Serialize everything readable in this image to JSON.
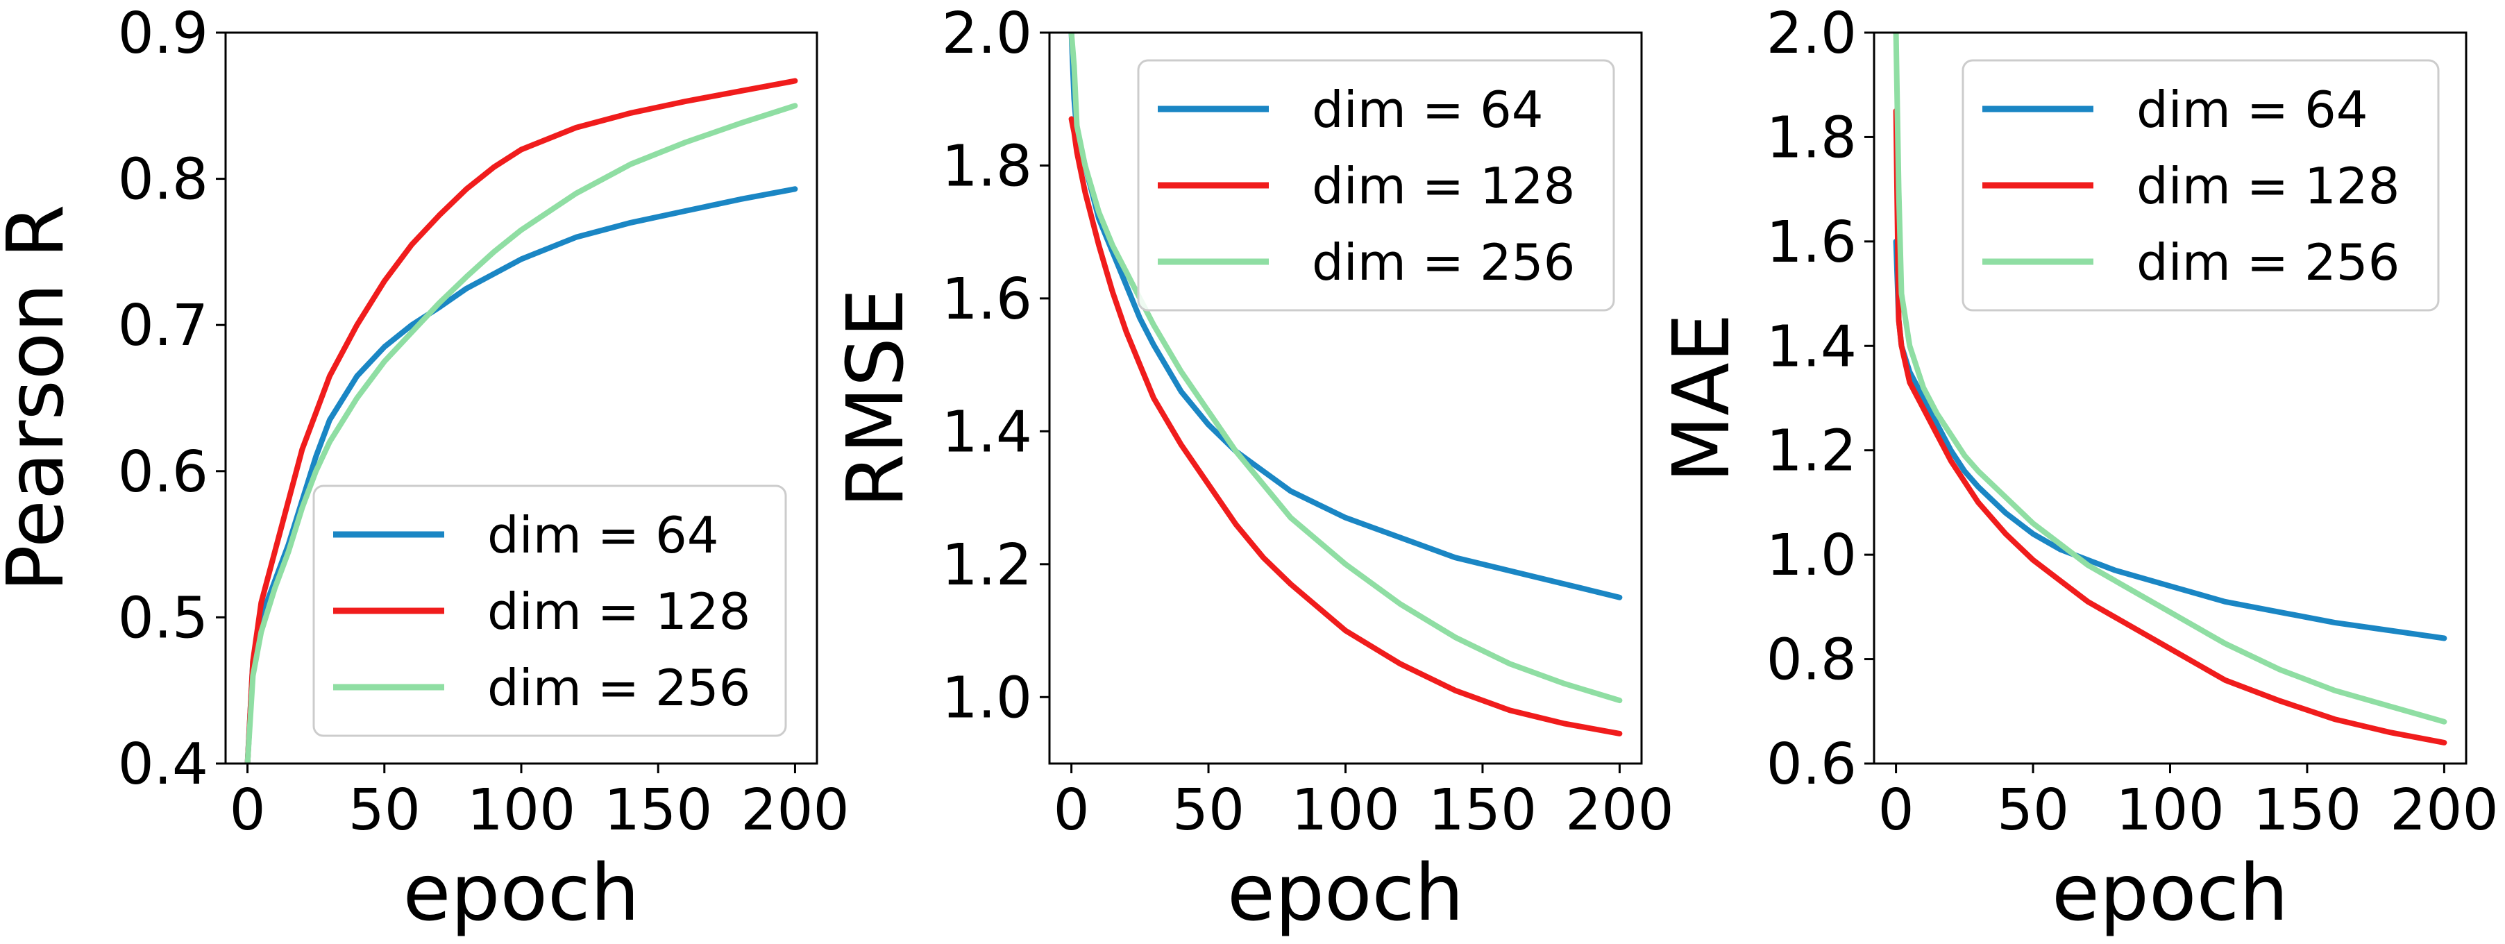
{
  "colors": {
    "dim64": "#1a86c4",
    "dim128": "#f01c1c",
    "dim256": "#8fdea3"
  },
  "chart_data": [
    {
      "type": "line",
      "xlabel": "epoch",
      "ylabel": "Pearson R",
      "xlim": [
        -8,
        208
      ],
      "ylim": [
        0.4,
        0.9
      ],
      "xticks": [
        0,
        50,
        100,
        150,
        200
      ],
      "xtick_labels": [
        "0",
        "50",
        "100",
        "150",
        "200"
      ],
      "yticks": [
        0.4,
        0.5,
        0.6,
        0.7,
        0.8,
        0.9
      ],
      "ytick_labels": [
        "0.4",
        "0.5",
        "0.6",
        "0.7",
        "0.8",
        "0.9"
      ],
      "legend": {
        "placement": "lower-right",
        "entries": [
          "dim = 64",
          "dim = 128",
          "dim = 256"
        ]
      },
      "series": [
        {
          "name": "dim = 64",
          "color": "#1a86c4",
          "x": [
            0,
            2,
            5,
            10,
            15,
            20,
            25,
            30,
            40,
            50,
            60,
            70,
            80,
            90,
            100,
            120,
            140,
            160,
            180,
            200
          ],
          "y": [
            0.4,
            0.47,
            0.5,
            0.525,
            0.55,
            0.58,
            0.61,
            0.635,
            0.665,
            0.685,
            0.7,
            0.712,
            0.725,
            0.735,
            0.745,
            0.76,
            0.77,
            0.778,
            0.786,
            0.793
          ]
        },
        {
          "name": "dim = 128",
          "color": "#f01c1c",
          "x": [
            0,
            2,
            5,
            10,
            15,
            20,
            25,
            30,
            40,
            50,
            60,
            70,
            80,
            90,
            100,
            120,
            140,
            160,
            180,
            200
          ],
          "y": [
            0.4,
            0.47,
            0.51,
            0.545,
            0.58,
            0.615,
            0.64,
            0.665,
            0.7,
            0.73,
            0.755,
            0.775,
            0.793,
            0.808,
            0.82,
            0.835,
            0.845,
            0.853,
            0.86,
            0.867
          ]
        },
        {
          "name": "dim = 256",
          "color": "#8fdea3",
          "x": [
            0,
            2,
            5,
            10,
            15,
            20,
            25,
            30,
            40,
            50,
            60,
            70,
            80,
            90,
            100,
            120,
            140,
            160,
            180,
            200
          ],
          "y": [
            0.4,
            0.46,
            0.49,
            0.52,
            0.545,
            0.575,
            0.6,
            0.62,
            0.65,
            0.675,
            0.695,
            0.715,
            0.733,
            0.75,
            0.765,
            0.79,
            0.81,
            0.825,
            0.838,
            0.85
          ]
        }
      ]
    },
    {
      "type": "line",
      "xlabel": "epoch",
      "ylabel": "RMSE",
      "xlim": [
        -8,
        208
      ],
      "ylim": [
        0.9,
        2.0
      ],
      "xticks": [
        0,
        50,
        100,
        150,
        200
      ],
      "xtick_labels": [
        "0",
        "50",
        "100",
        "150",
        "200"
      ],
      "yticks": [
        1.0,
        1.2,
        1.4,
        1.6,
        1.8,
        2.0
      ],
      "ytick_labels": [
        "1.0",
        "1.2",
        "1.4",
        "1.6",
        "1.8",
        "2.0"
      ],
      "legend": {
        "placement": "top-right",
        "entries": [
          "dim = 64",
          "dim = 128",
          "dim = 256"
        ]
      },
      "series": [
        {
          "name": "dim = 64",
          "color": "#1a86c4",
          "x": [
            0,
            1,
            2,
            5,
            10,
            15,
            20,
            25,
            30,
            40,
            50,
            60,
            70,
            80,
            100,
            120,
            140,
            160,
            180,
            200
          ],
          "y": [
            2.0,
            1.9,
            1.85,
            1.8,
            1.72,
            1.67,
            1.62,
            1.57,
            1.53,
            1.46,
            1.41,
            1.37,
            1.34,
            1.31,
            1.27,
            1.24,
            1.21,
            1.19,
            1.17,
            1.15
          ]
        },
        {
          "name": "dim = 128",
          "color": "#f01c1c",
          "x": [
            0,
            1,
            2,
            5,
            10,
            15,
            20,
            25,
            30,
            40,
            50,
            60,
            70,
            80,
            100,
            120,
            140,
            160,
            180,
            200
          ],
          "y": [
            1.87,
            1.85,
            1.82,
            1.76,
            1.68,
            1.61,
            1.55,
            1.5,
            1.45,
            1.38,
            1.32,
            1.26,
            1.21,
            1.17,
            1.1,
            1.05,
            1.01,
            0.98,
            0.96,
            0.945
          ]
        },
        {
          "name": "dim = 256",
          "color": "#8fdea3",
          "x": [
            0,
            1,
            2,
            5,
            10,
            15,
            20,
            25,
            30,
            40,
            50,
            60,
            70,
            80,
            100,
            120,
            140,
            160,
            180,
            200
          ],
          "y": [
            2.0,
            1.95,
            1.86,
            1.8,
            1.73,
            1.68,
            1.64,
            1.6,
            1.56,
            1.49,
            1.43,
            1.37,
            1.32,
            1.27,
            1.2,
            1.14,
            1.09,
            1.05,
            1.02,
            0.995
          ]
        }
      ]
    },
    {
      "type": "line",
      "xlabel": "epoch",
      "ylabel": "MAE",
      "xlim": [
        -8,
        208
      ],
      "ylim": [
        0.6,
        2.0
      ],
      "xticks": [
        0,
        50,
        100,
        150,
        200
      ],
      "xtick_labels": [
        "0",
        "50",
        "100",
        "150",
        "200"
      ],
      "yticks": [
        0.6,
        0.8,
        1.0,
        1.2,
        1.4,
        1.6,
        1.8,
        2.0
      ],
      "ytick_labels": [
        "0.6",
        "0.8",
        "1.0",
        "1.2",
        "1.4",
        "1.6",
        "1.8",
        "2.0"
      ],
      "legend": {
        "placement": "top-right",
        "entries": [
          "dim = 64",
          "dim = 128",
          "dim = 256"
        ]
      },
      "series": [
        {
          "name": "dim = 64",
          "color": "#1a86c4",
          "x": [
            0,
            1,
            2,
            5,
            10,
            15,
            20,
            25,
            30,
            40,
            50,
            60,
            70,
            80,
            100,
            120,
            140,
            160,
            180,
            200
          ],
          "y": [
            1.6,
            1.45,
            1.4,
            1.35,
            1.3,
            1.25,
            1.2,
            1.16,
            1.13,
            1.08,
            1.04,
            1.01,
            0.99,
            0.97,
            0.94,
            0.91,
            0.89,
            0.87,
            0.855,
            0.84
          ]
        },
        {
          "name": "dim = 128",
          "color": "#f01c1c",
          "x": [
            0,
            1,
            2,
            5,
            10,
            15,
            20,
            25,
            30,
            40,
            50,
            60,
            70,
            80,
            100,
            120,
            140,
            160,
            180,
            200
          ],
          "y": [
            1.85,
            1.45,
            1.4,
            1.33,
            1.28,
            1.23,
            1.18,
            1.14,
            1.1,
            1.04,
            0.99,
            0.95,
            0.91,
            0.88,
            0.82,
            0.76,
            0.72,
            0.685,
            0.66,
            0.64
          ]
        },
        {
          "name": "dim = 256",
          "color": "#8fdea3",
          "x": [
            0,
            1,
            2,
            5,
            10,
            15,
            20,
            25,
            30,
            40,
            50,
            60,
            70,
            80,
            100,
            120,
            140,
            160,
            180,
            200
          ],
          "y": [
            2.0,
            1.7,
            1.5,
            1.4,
            1.32,
            1.27,
            1.23,
            1.19,
            1.16,
            1.11,
            1.06,
            1.02,
            0.98,
            0.95,
            0.89,
            0.83,
            0.78,
            0.74,
            0.71,
            0.68
          ]
        }
      ]
    }
  ]
}
